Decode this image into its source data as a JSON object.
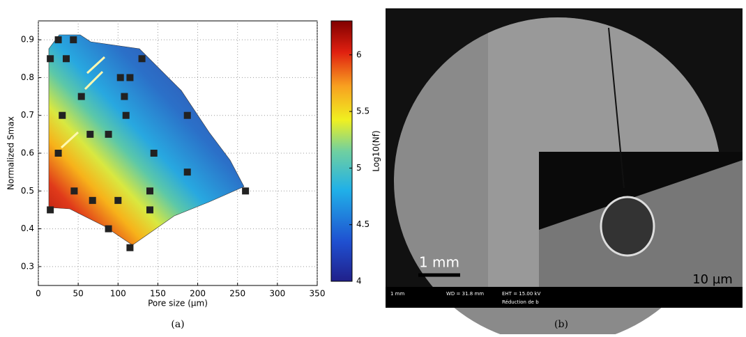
{
  "chart_data": {
    "type": "scatter",
    "xlabel": "Pore size (µm)",
    "ylabel": "Normalized Smax",
    "x": [
      15,
      25,
      44,
      35,
      130,
      103,
      115,
      108,
      110,
      54,
      30,
      65,
      88,
      25,
      145,
      187,
      187,
      45,
      140,
      260,
      15,
      68,
      100,
      140,
      88,
      115
    ],
    "values": [
      0.85,
      0.9,
      0.9,
      0.85,
      0.85,
      0.8,
      0.8,
      0.75,
      0.7,
      0.75,
      0.7,
      0.65,
      0.65,
      0.6,
      0.6,
      0.7,
      0.55,
      0.5,
      0.5,
      0.5,
      0.45,
      0.475,
      0.475,
      0.45,
      0.4,
      0.35
    ],
    "color": "#222222",
    "xlim": [
      0,
      350
    ],
    "xticks": [
      0,
      50,
      100,
      150,
      200,
      250,
      300,
      350
    ],
    "ylim": [
      0.25,
      0.95
    ],
    "yticks": [
      0.3,
      0.4,
      0.5,
      0.6,
      0.7,
      0.8,
      0.9
    ],
    "grid": true,
    "colorbar": {
      "label": "Log10(Nf)",
      "lim": [
        4,
        6.3
      ],
      "ticks": [
        4,
        4.5,
        5,
        5.5,
        6
      ]
    }
  },
  "image": {
    "scale_main": "1 mm",
    "scale_inset": "10 µm",
    "footer": [
      "1 mm",
      "WD = 31.8 mm",
      "EHT = 15.00 kV",
      "Réduction de b"
    ]
  },
  "captions": [
    "(a)",
    "(b)"
  ]
}
